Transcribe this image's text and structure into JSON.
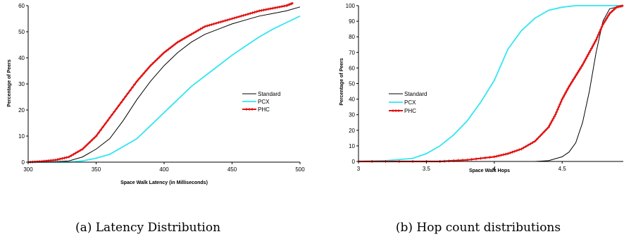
{
  "figures": [
    {
      "caption": "(a) Latency Distribution",
      "chart_data": {
        "type": "line",
        "title": "",
        "xlabel": "Space Walk Latency (in Milliseconds)",
        "ylabel": "Percentage of Peers",
        "xlim": [
          300,
          500
        ],
        "ylim": [
          0,
          60
        ],
        "xticks": [
          300,
          350,
          400,
          450,
          500
        ],
        "yticks": [
          0,
          10,
          20,
          30,
          40,
          50,
          60
        ],
        "legend_position": "right-middle",
        "series": [
          {
            "name": "Standard",
            "color": "#000000",
            "marker": "none",
            "points": [
              [
                300,
                0
              ],
              [
                320,
                0.2
              ],
              [
                330,
                0.5
              ],
              [
                340,
                2
              ],
              [
                350,
                5
              ],
              [
                360,
                9
              ],
              [
                370,
                16
              ],
              [
                380,
                24
              ],
              [
                390,
                31
              ],
              [
                400,
                37
              ],
              [
                410,
                42
              ],
              [
                420,
                46
              ],
              [
                430,
                49
              ],
              [
                440,
                51
              ],
              [
                450,
                53
              ],
              [
                460,
                54.5
              ],
              [
                470,
                56
              ],
              [
                480,
                57
              ],
              [
                490,
                58
              ],
              [
                500,
                59.5
              ]
            ]
          },
          {
            "name": "PCX",
            "color": "#33e6f0",
            "marker": "none",
            "points": [
              [
                300,
                0
              ],
              [
                330,
                0
              ],
              [
                340,
                0.5
              ],
              [
                350,
                1.5
              ],
              [
                360,
                3
              ],
              [
                370,
                6
              ],
              [
                380,
                9
              ],
              [
                390,
                14
              ],
              [
                400,
                19
              ],
              [
                410,
                24
              ],
              [
                420,
                29
              ],
              [
                430,
                33
              ],
              [
                440,
                37
              ],
              [
                450,
                41
              ],
              [
                460,
                44.5
              ],
              [
                470,
                48
              ],
              [
                480,
                51
              ],
              [
                490,
                53.5
              ],
              [
                500,
                56
              ]
            ]
          },
          {
            "name": "PHC",
            "color": "#e01010",
            "marker": "plus",
            "points": [
              [
                300,
                0
              ],
              [
                310,
                0.3
              ],
              [
                320,
                0.8
              ],
              [
                330,
                2
              ],
              [
                340,
                5
              ],
              [
                350,
                10
              ],
              [
                360,
                17
              ],
              [
                370,
                24
              ],
              [
                380,
                31
              ],
              [
                390,
                37
              ],
              [
                400,
                42
              ],
              [
                410,
                46
              ],
              [
                420,
                49
              ],
              [
                430,
                52
              ],
              [
                440,
                53.5
              ],
              [
                450,
                55
              ],
              [
                460,
                56.5
              ],
              [
                470,
                58
              ],
              [
                480,
                59
              ],
              [
                490,
                60
              ],
              [
                495,
                61
              ]
            ]
          }
        ]
      }
    },
    {
      "caption": "(b) Hop count distributions",
      "chart_data": {
        "type": "line",
        "title": "",
        "xlabel": "Space Walk Hops",
        "ylabel": "Percentage of Peers",
        "xlim": [
          3,
          4.95
        ],
        "ylim": [
          0,
          100
        ],
        "xticks": [
          3,
          3.5,
          4,
          4.5
        ],
        "xtick_labels": [
          "3",
          "3.5",
          "4",
          "4.5"
        ],
        "yticks": [
          0,
          10,
          20,
          30,
          40,
          50,
          60,
          70,
          80,
          90,
          100
        ],
        "legend_position": "left-middle",
        "series": [
          {
            "name": "Standard",
            "color": "#000000",
            "marker": "none",
            "points": [
              [
                3,
                0
              ],
              [
                4.3,
                0
              ],
              [
                4.4,
                0.5
              ],
              [
                4.5,
                3
              ],
              [
                4.55,
                6
              ],
              [
                4.6,
                12
              ],
              [
                4.65,
                25
              ],
              [
                4.7,
                45
              ],
              [
                4.75,
                70
              ],
              [
                4.8,
                90
              ],
              [
                4.85,
                98
              ],
              [
                4.95,
                100
              ]
            ]
          },
          {
            "name": "PCX",
            "color": "#33e6f0",
            "marker": "none",
            "points": [
              [
                3,
                0
              ],
              [
                3.2,
                0.5
              ],
              [
                3.4,
                2
              ],
              [
                3.5,
                5
              ],
              [
                3.6,
                10
              ],
              [
                3.7,
                17
              ],
              [
                3.8,
                26
              ],
              [
                3.9,
                38
              ],
              [
                4,
                52
              ],
              [
                4.05,
                62
              ],
              [
                4.1,
                72
              ],
              [
                4.2,
                84
              ],
              [
                4.3,
                92
              ],
              [
                4.4,
                97
              ],
              [
                4.5,
                99
              ],
              [
                4.6,
                100
              ],
              [
                4.95,
                100
              ]
            ]
          },
          {
            "name": "PHC",
            "color": "#e01010",
            "marker": "plus",
            "points": [
              [
                3,
                0
              ],
              [
                3.6,
                0
              ],
              [
                3.8,
                1
              ],
              [
                4,
                3
              ],
              [
                4.1,
                5
              ],
              [
                4.2,
                8
              ],
              [
                4.3,
                13
              ],
              [
                4.4,
                22
              ],
              [
                4.45,
                30
              ],
              [
                4.5,
                40
              ],
              [
                4.55,
                48
              ],
              [
                4.6,
                55
              ],
              [
                4.65,
                62
              ],
              [
                4.7,
                70
              ],
              [
                4.75,
                78
              ],
              [
                4.8,
                88
              ],
              [
                4.85,
                95
              ],
              [
                4.9,
                99
              ],
              [
                4.95,
                100
              ]
            ]
          }
        ]
      }
    }
  ]
}
